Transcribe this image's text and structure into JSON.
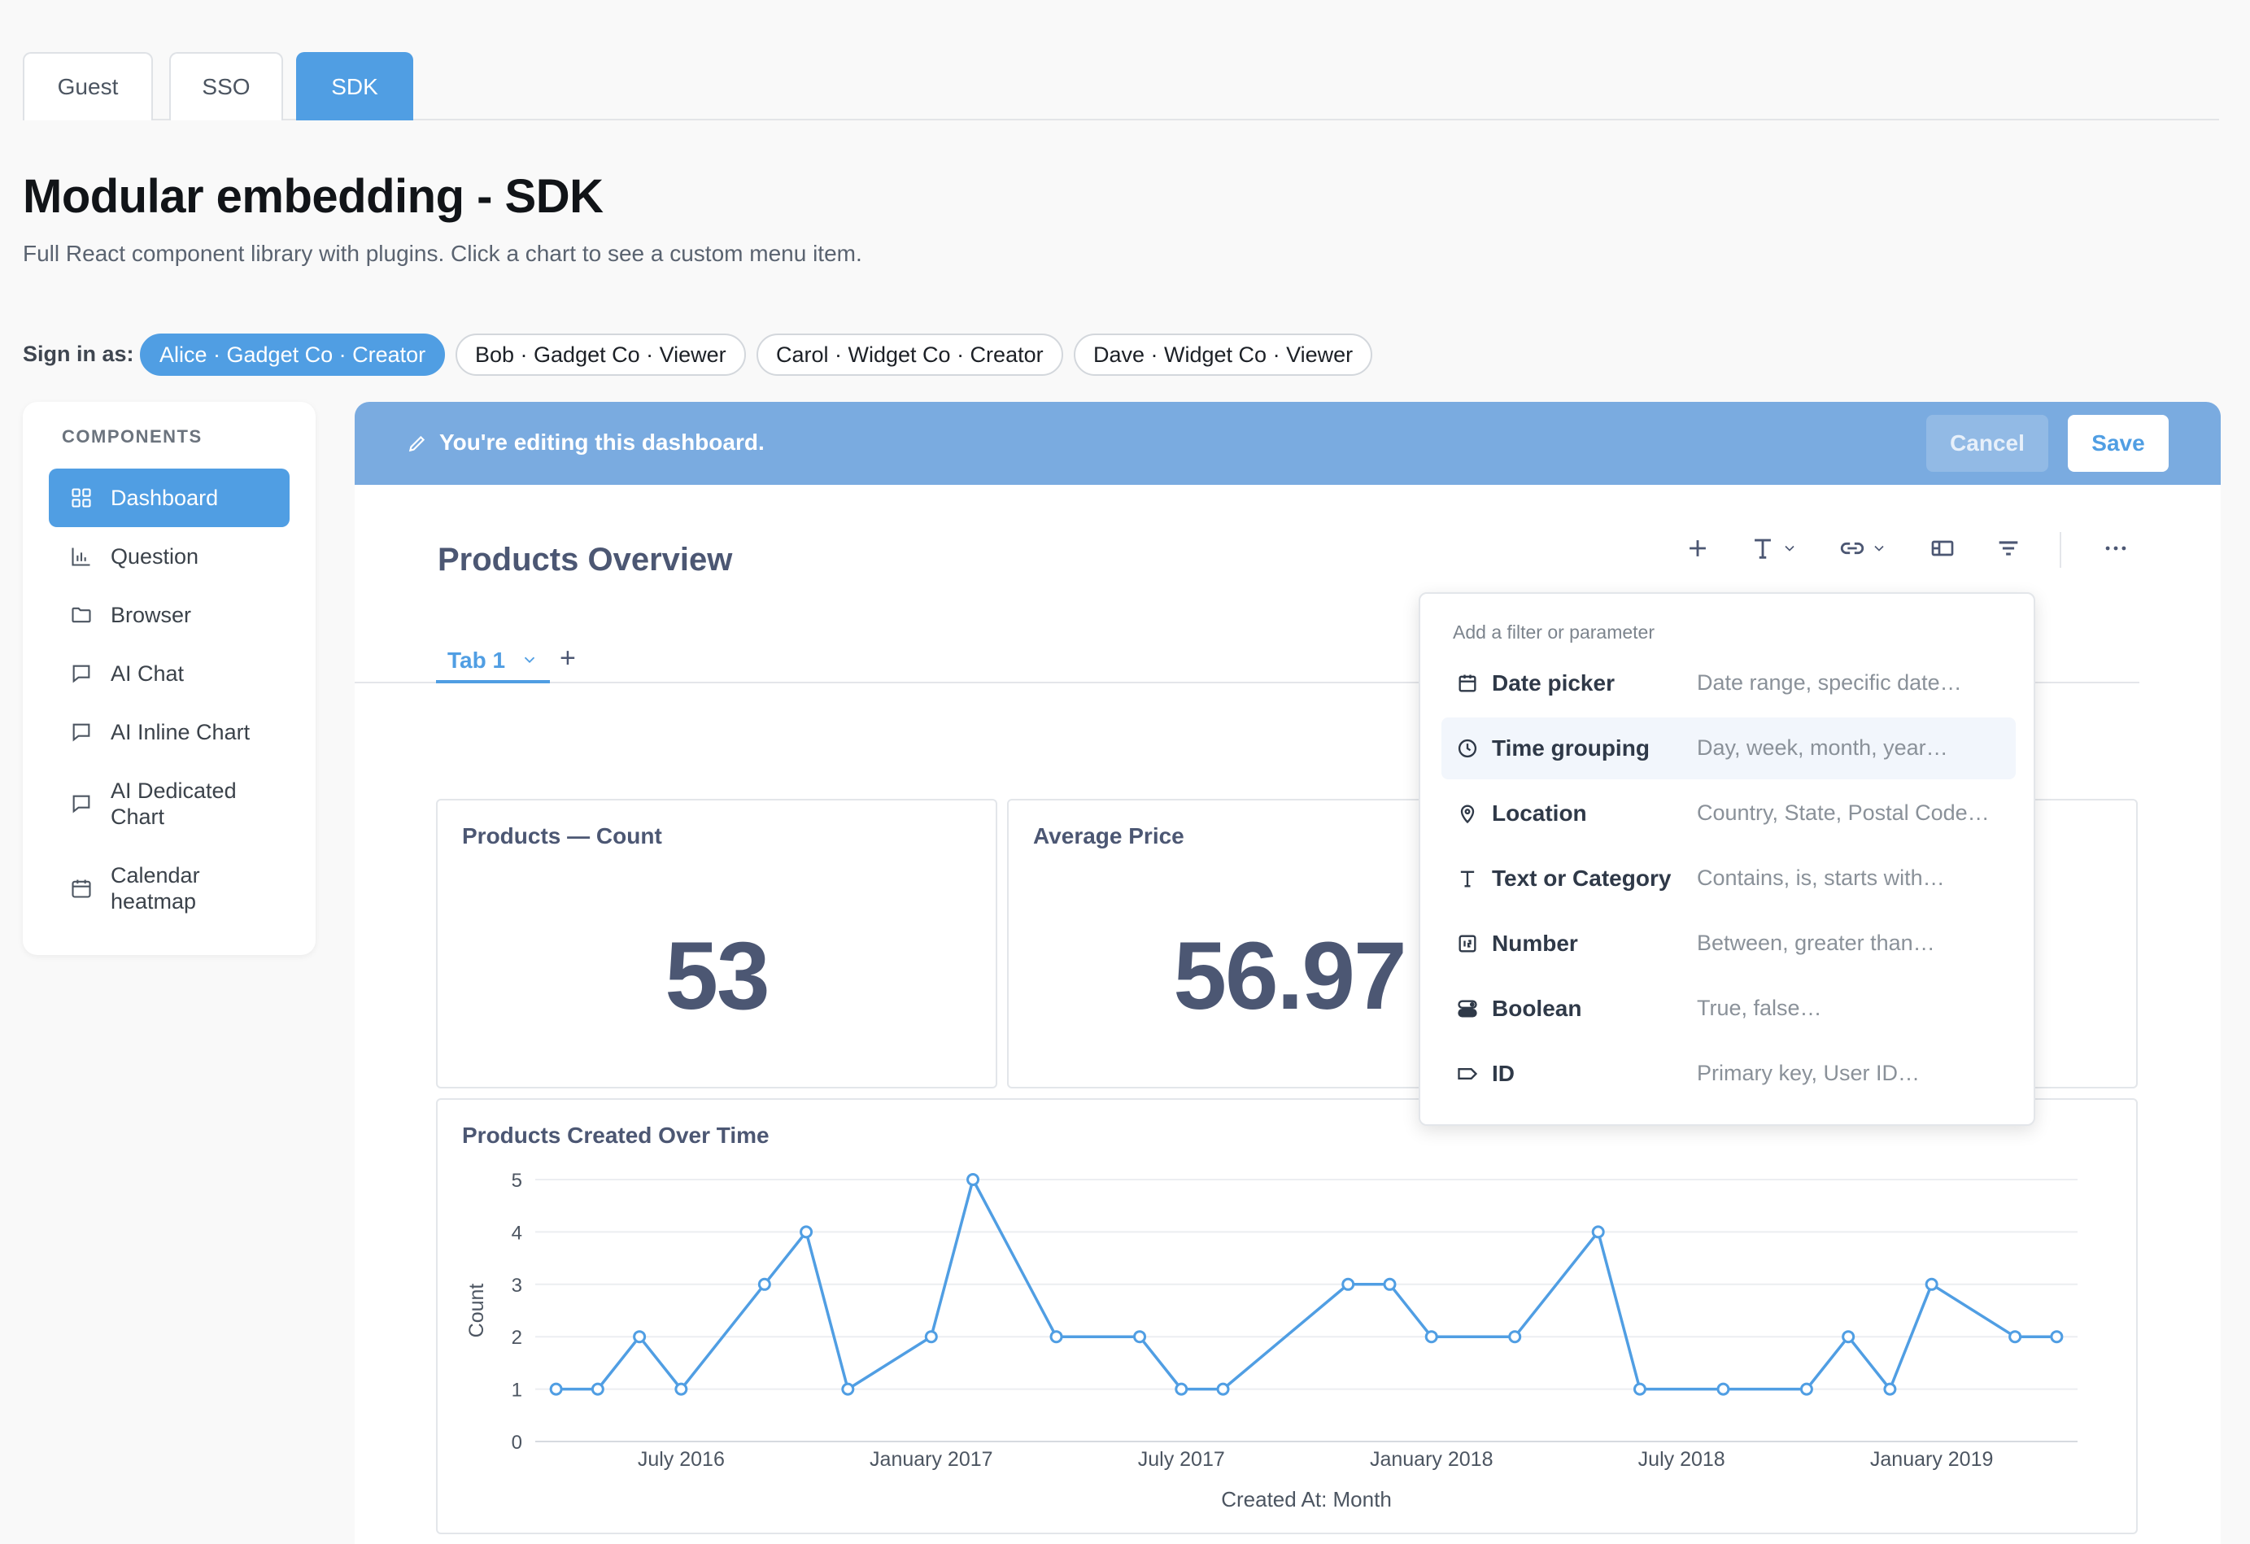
{
  "top_tabs": [
    {
      "label": "Guest",
      "active": false
    },
    {
      "label": "SSO",
      "active": false
    },
    {
      "label": "SDK",
      "active": true
    }
  ],
  "page": {
    "title": "Modular embedding - SDK",
    "subtitle": "Full React component library with plugins. Click a chart to see a custom menu item."
  },
  "signin": {
    "label": "Sign in as:",
    "users": [
      {
        "label": "Alice · Gadget Co · Creator",
        "active": true
      },
      {
        "label": "Bob · Gadget Co · Viewer",
        "active": false
      },
      {
        "label": "Carol · Widget Co · Creator",
        "active": false
      },
      {
        "label": "Dave · Widget Co · Viewer",
        "active": false
      }
    ]
  },
  "sidebar": {
    "heading": "COMPONENTS",
    "items": [
      {
        "label": "Dashboard",
        "icon": "grid-icon",
        "active": true
      },
      {
        "label": "Question",
        "icon": "bar-chart-icon",
        "active": false
      },
      {
        "label": "Browser",
        "icon": "folder-icon",
        "active": false
      },
      {
        "label": "AI Chat",
        "icon": "chat-icon",
        "active": false
      },
      {
        "label": "AI Inline Chart",
        "icon": "chat-icon",
        "active": false
      },
      {
        "label": "AI Dedicated Chart",
        "icon": "chat-icon",
        "active": false
      },
      {
        "label": "Calendar heatmap",
        "icon": "calendar-icon",
        "active": false
      }
    ]
  },
  "edit_banner": {
    "text": "You're editing this dashboard.",
    "cancel_label": "Cancel",
    "save_label": "Save"
  },
  "dashboard": {
    "title": "Products Overview",
    "toolbar_icons": [
      "plus-icon",
      "text-icon",
      "link-icon",
      "section-icon",
      "filter-icon",
      "more-icon"
    ],
    "tabs": [
      {
        "label": "Tab 1"
      }
    ],
    "add_tab_label": "+"
  },
  "cards": {
    "count": {
      "title": "Products — Count",
      "value": "53"
    },
    "avg_price": {
      "title": "Average Price",
      "value": "56.97"
    },
    "chart": {
      "title": "Products Created Over Time"
    }
  },
  "filter_popover": {
    "heading": "Add a filter or parameter",
    "items": [
      {
        "name": "Date picker",
        "desc": "Date range, specific date…",
        "icon": "calendar-icon"
      },
      {
        "name": "Time grouping",
        "desc": "Day, week, month, year…",
        "icon": "clock-icon"
      },
      {
        "name": "Location",
        "desc": "Country, State, Postal Code…",
        "icon": "pin-icon"
      },
      {
        "name": "Text or Category",
        "desc": "Contains, is, starts with…",
        "icon": "text-icon"
      },
      {
        "name": "Number",
        "desc": "Between, greater than…",
        "icon": "number-icon"
      },
      {
        "name": "Boolean",
        "desc": "True, false…",
        "icon": "toggle-icon"
      },
      {
        "name": "ID",
        "desc": "Primary key, User ID…",
        "icon": "tag-icon"
      }
    ]
  },
  "colors": {
    "accent": "#509ee3",
    "banner": "#7aabe0",
    "title_text": "#4c5773"
  },
  "chart_data": {
    "type": "line",
    "title": "Products Created Over Time",
    "xlabel": "Created At: Month",
    "ylabel": "Count",
    "ylim": [
      0,
      5
    ],
    "yticks": [
      0,
      1,
      2,
      3,
      4,
      5
    ],
    "xtick_labels": [
      "July 2016",
      "January 2017",
      "July 2017",
      "January 2018",
      "July 2018",
      "January 2019"
    ],
    "xtick_months": [
      "2016-07",
      "2017-01",
      "2017-07",
      "2018-01",
      "2018-07",
      "2019-01"
    ],
    "grid": true,
    "series": [
      {
        "points": [
          {
            "x": "2016-04",
            "y": 1
          },
          {
            "x": "2016-05",
            "y": 1
          },
          {
            "x": "2016-06",
            "y": 2
          },
          {
            "x": "2016-07",
            "y": 1
          },
          {
            "x": "2016-09",
            "y": 3
          },
          {
            "x": "2016-10",
            "y": 4
          },
          {
            "x": "2016-11",
            "y": 1
          },
          {
            "x": "2017-01",
            "y": 2
          },
          {
            "x": "2017-02",
            "y": 5
          },
          {
            "x": "2017-04",
            "y": 2
          },
          {
            "x": "2017-06",
            "y": 2
          },
          {
            "x": "2017-07",
            "y": 1
          },
          {
            "x": "2017-08",
            "y": 1
          },
          {
            "x": "2017-11",
            "y": 3
          },
          {
            "x": "2017-12",
            "y": 3
          },
          {
            "x": "2018-01",
            "y": 2
          },
          {
            "x": "2018-03",
            "y": 2
          },
          {
            "x": "2018-05",
            "y": 4
          },
          {
            "x": "2018-06",
            "y": 1
          },
          {
            "x": "2018-08",
            "y": 1
          },
          {
            "x": "2018-10",
            "y": 1
          },
          {
            "x": "2018-11",
            "y": 2
          },
          {
            "x": "2018-12",
            "y": 1
          },
          {
            "x": "2019-01",
            "y": 3
          },
          {
            "x": "2019-03",
            "y": 2
          },
          {
            "x": "2019-04",
            "y": 2
          }
        ]
      }
    ]
  }
}
